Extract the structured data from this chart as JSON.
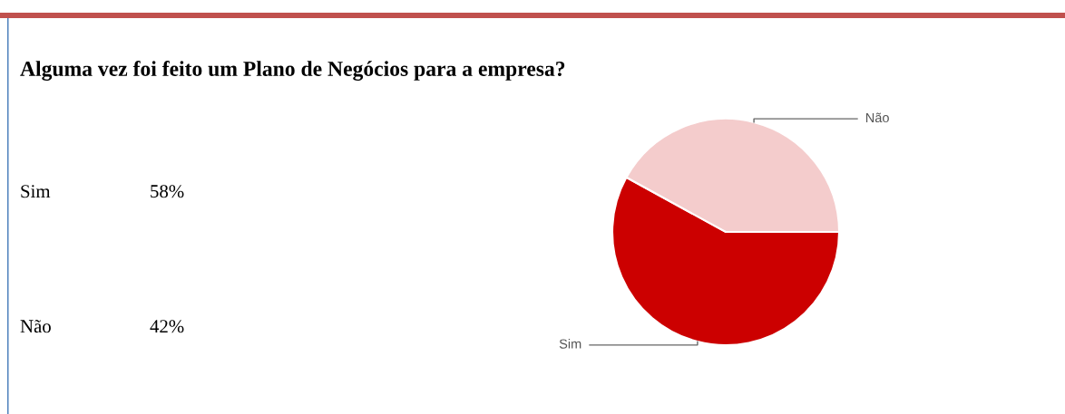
{
  "chart_data": {
    "type": "pie",
    "title": "Alguma vez foi feito um Plano de Negócios para a empresa?",
    "categories": [
      "Sim",
      "Não"
    ],
    "values": [
      58,
      42
    ],
    "colors": [
      "#cc0000",
      "#f4cccc"
    ],
    "annotations": [
      "58%",
      "42%"
    ],
    "legend": false
  }
}
